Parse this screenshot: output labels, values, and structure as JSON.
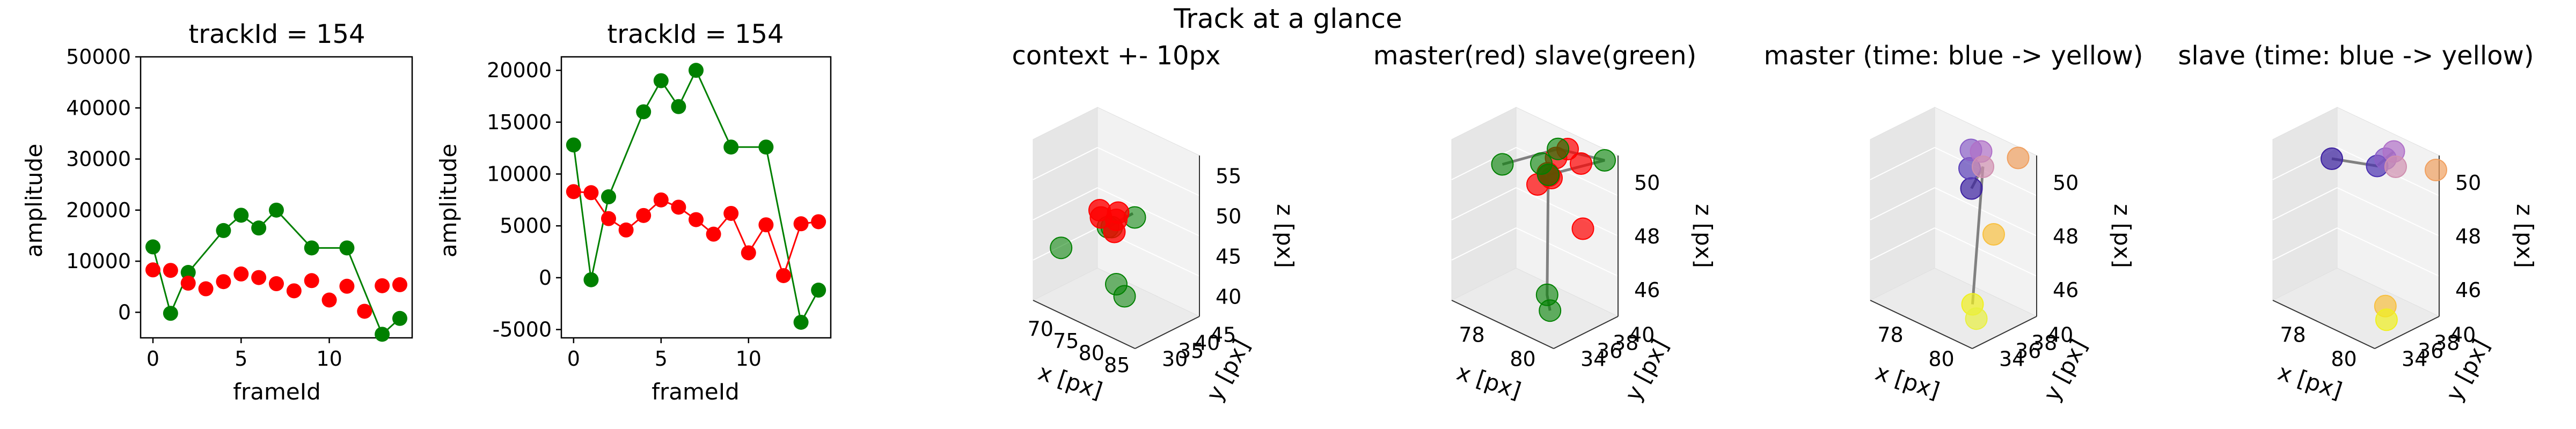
{
  "figure": {
    "suptitle": "Track at a glance"
  },
  "colors": {
    "red": "#ff0000",
    "green": "#008000",
    "line_gray": "#808080",
    "pane_light": "#f2f2f2",
    "pane_mid": "#e6e6e6",
    "pane_dark": "#ebebeb"
  },
  "chart_data": [
    {
      "type": "scatter",
      "title": "trackId = 154",
      "xlabel": "frameId",
      "ylabel": "amplitude",
      "xlim": [
        -0.7,
        14.7
      ],
      "ylim": [
        -5000,
        50000
      ],
      "xticks": [
        0,
        5,
        10
      ],
      "yticks": [
        0,
        10000,
        20000,
        30000,
        40000,
        50000
      ],
      "series": [
        {
          "color": "#008000",
          "connected": true,
          "x": [
            0,
            1,
            2,
            4,
            5,
            6,
            7,
            9,
            11,
            13,
            14
          ],
          "y": [
            12800,
            -200,
            7800,
            16000,
            19000,
            16500,
            20000,
            12600,
            12600,
            -4300,
            -1200
          ]
        },
        {
          "color": "#ff0000",
          "connected": false,
          "x": [
            0,
            1,
            2,
            3,
            4,
            5,
            6,
            7,
            8,
            9,
            10,
            11,
            12,
            13,
            14
          ],
          "y": [
            8300,
            8200,
            5700,
            4600,
            6000,
            7500,
            6800,
            5600,
            4200,
            6200,
            2400,
            5100,
            200,
            5200,
            5400
          ]
        }
      ]
    },
    {
      "type": "scatter",
      "title": "trackId = 154",
      "xlabel": "frameId",
      "ylabel": "amplitude",
      "xlim": [
        -0.7,
        14.7
      ],
      "ylim": [
        -5800,
        21300
      ],
      "xticks": [
        0,
        5,
        10
      ],
      "yticks": [
        -5000,
        0,
        5000,
        10000,
        15000,
        20000
      ],
      "series": [
        {
          "color": "#008000",
          "connected": true,
          "x": [
            0,
            1,
            2,
            4,
            5,
            6,
            7,
            9,
            11,
            13,
            14
          ],
          "y": [
            12800,
            -200,
            7800,
            16000,
            19000,
            16500,
            20000,
            12600,
            12600,
            -4300,
            -1200
          ]
        },
        {
          "color": "#ff0000",
          "connected": true,
          "x": [
            0,
            1,
            2,
            3,
            4,
            5,
            6,
            7,
            8,
            9,
            10,
            11,
            12,
            13,
            14
          ],
          "y": [
            8300,
            8200,
            5700,
            4600,
            6000,
            7500,
            6800,
            5600,
            4200,
            6200,
            2400,
            5100,
            200,
            5200,
            5400
          ]
        }
      ]
    },
    {
      "type": "scatter3d",
      "title": "context +- 10px",
      "xlabel": "x [px]",
      "ylabel": "y [px]",
      "zlabel": "z [px]",
      "xticks": [
        "70",
        "75",
        "80",
        "85"
      ],
      "yticks": [
        "30",
        "35",
        "40",
        "45"
      ],
      "zticks": [
        "40",
        "45",
        "50",
        "55"
      ],
      "groups": [
        {
          "color": "#008000",
          "alpha": 0.55,
          "points": [
            [
              0.18,
              0.15,
              0.35
            ],
            [
              0.55,
              0.35,
              0.55
            ],
            [
              0.65,
              0.55,
              0.6
            ],
            [
              0.45,
              0.45,
              0.5
            ],
            [
              0.5,
              0.5,
              0.15
            ],
            [
              0.55,
              0.55,
              0.08
            ]
          ]
        },
        {
          "color": "#ff0000",
          "alpha": 0.8,
          "points": [
            [
              0.4,
              0.4,
              0.6
            ],
            [
              0.5,
              0.5,
              0.55
            ],
            [
              0.45,
              0.55,
              0.45
            ],
            [
              0.55,
              0.45,
              0.62
            ],
            [
              0.35,
              0.5,
              0.52
            ]
          ]
        }
      ]
    },
    {
      "type": "scatter3d",
      "title": "master(red) slave(green)",
      "xlabel": "x [px]",
      "ylabel": "y [px]",
      "zlabel": "z [px]",
      "xticks": [
        "78",
        "80"
      ],
      "yticks": [
        "34",
        "36",
        "38",
        "40"
      ],
      "zticks": [
        "46",
        "48",
        "50"
      ]
    },
    {
      "type": "scatter3d",
      "title": "master (time: blue -> yellow)",
      "xlabel": "x [px]",
      "ylabel": "y [px]",
      "zlabel": "z [px]",
      "xticks": [
        "78",
        "80"
      ],
      "yticks": [
        "34",
        "36",
        "38",
        "40"
      ],
      "zticks": [
        "46",
        "48",
        "50"
      ]
    },
    {
      "type": "scatter3d",
      "title": "slave (time: blue -> yellow)",
      "xlabel": "x [px]",
      "ylabel": "y [px]",
      "zlabel": "z [px]",
      "xticks": [
        "78",
        "80"
      ],
      "yticks": [
        "34",
        "36",
        "38",
        "40"
      ],
      "zticks": [
        "46",
        "48",
        "50"
      ]
    }
  ]
}
